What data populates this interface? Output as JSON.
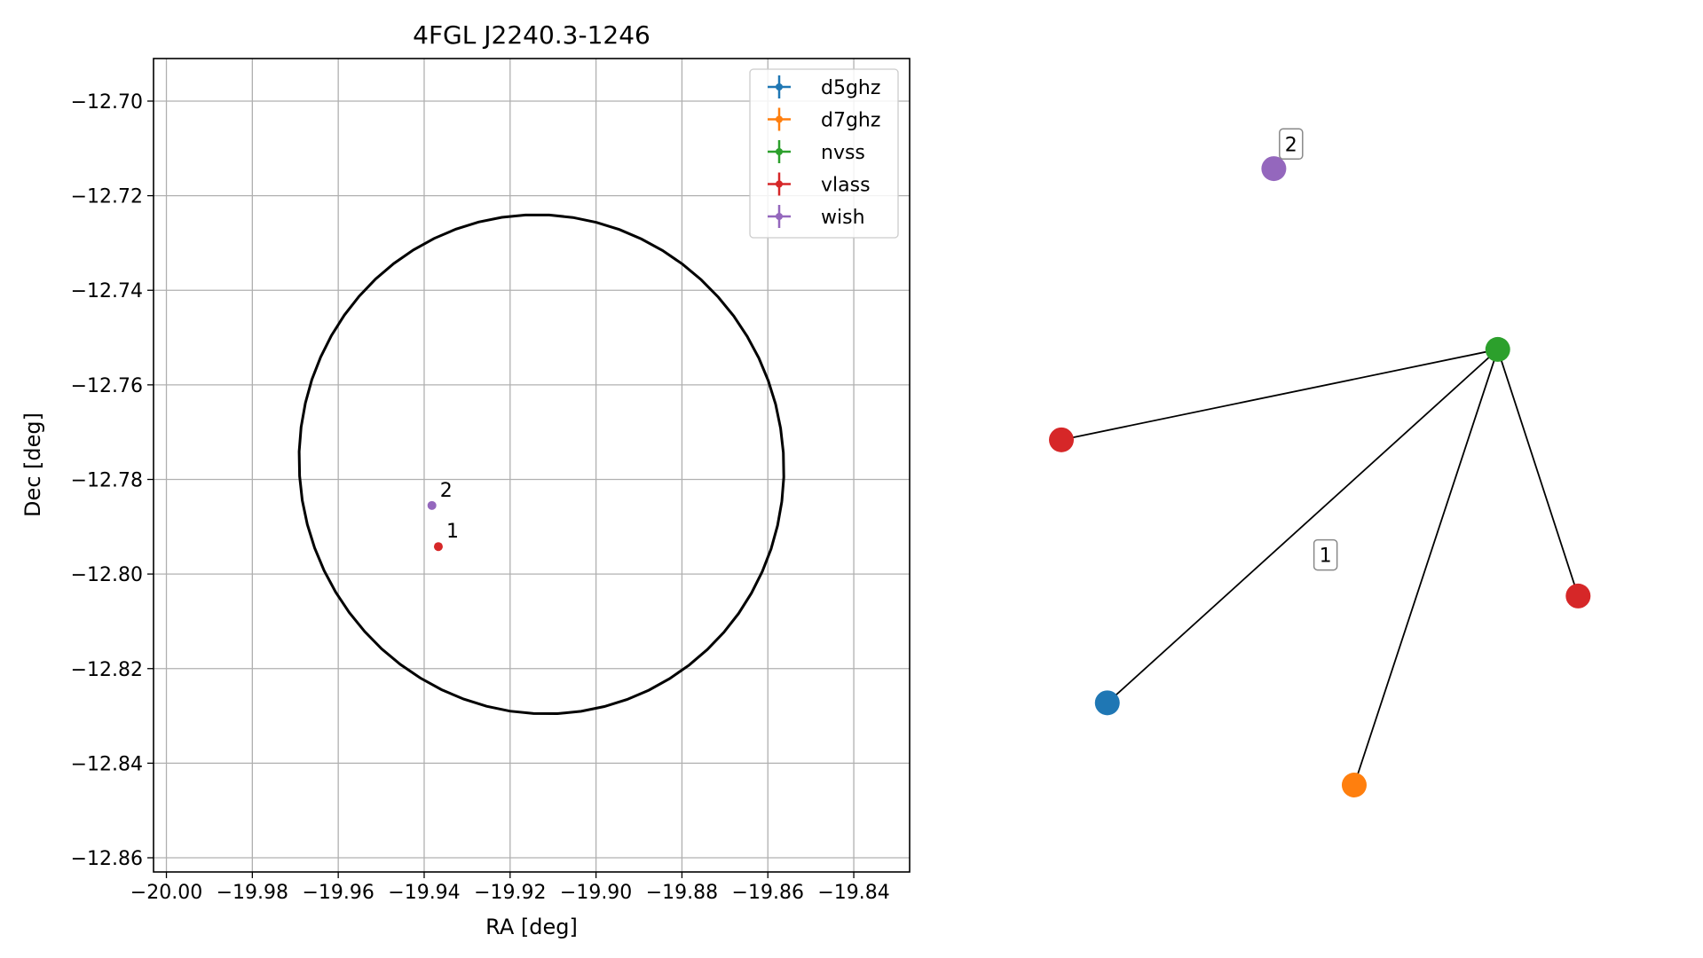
{
  "colors": {
    "d5ghz": "#1f77b4",
    "d7ghz": "#ff7f0e",
    "nvss": "#2ca02c",
    "vlass": "#d62728",
    "wish": "#9467bd",
    "grid": "#b0b0b0",
    "edge": "#000000"
  },
  "chart_data": [
    {
      "type": "scatter",
      "title": "4FGL J2240.3-1246",
      "xlabel": "RA [deg]",
      "ylabel": "Dec [deg]",
      "xlim": [
        -20.003,
        -19.827
      ],
      "ylim": [
        -12.863,
        -12.691
      ],
      "grid": true,
      "legend_placement": "top-right",
      "xticks": [
        -20.0,
        -19.98,
        -19.96,
        -19.94,
        -19.92,
        -19.9,
        -19.88,
        -19.86,
        -19.84
      ],
      "xtick_labels": [
        "−20.00",
        "−19.98",
        "−19.96",
        "−19.94",
        "−19.92",
        "−19.90",
        "−19.88",
        "−19.86",
        "−19.84"
      ],
      "yticks": [
        -12.7,
        -12.72,
        -12.74,
        -12.76,
        -12.78,
        -12.8,
        -12.82,
        -12.84,
        -12.86
      ],
      "ytick_labels": [
        "−12.70",
        "−12.72",
        "−12.74",
        "−12.76",
        "−12.78",
        "−12.80",
        "−12.82",
        "−12.84",
        "−12.86"
      ],
      "series": [
        {
          "name": "d5ghz",
          "points": []
        },
        {
          "name": "d7ghz",
          "points": []
        },
        {
          "name": "nvss",
          "points": []
        },
        {
          "name": "vlass",
          "points": [
            {
              "x": -19.9367,
              "y": -12.7942,
              "label": "1"
            }
          ]
        },
        {
          "name": "wish",
          "points": [
            {
              "x": -19.9382,
              "y": -12.7855,
              "label": "2"
            }
          ]
        }
      ],
      "ellipse": {
        "center_x": -19.9127,
        "center_y": -12.7768,
        "semi_axis_x": 0.0565,
        "semi_axis_y": 0.0527,
        "rotation_deg": -8
      }
    },
    {
      "type": "network",
      "nodes": [
        {
          "id": "wish-2",
          "series": "wish",
          "x": 0.37,
          "y": 0.93
        },
        {
          "id": "nvss-1",
          "series": "nvss",
          "x": 0.76,
          "y": 0.71
        },
        {
          "id": "vlass-a",
          "series": "vlass",
          "x": 0.0,
          "y": 0.6
        },
        {
          "id": "vlass-b",
          "series": "vlass",
          "x": 0.9,
          "y": 0.41
        },
        {
          "id": "d5ghz-1",
          "series": "d5ghz",
          "x": 0.08,
          "y": 0.28
        },
        {
          "id": "d7ghz-1",
          "series": "d7ghz",
          "x": 0.51,
          "y": 0.18
        }
      ],
      "edges": [
        [
          "nvss-1",
          "vlass-a"
        ],
        [
          "nvss-1",
          "d5ghz-1"
        ],
        [
          "nvss-1",
          "d7ghz-1"
        ],
        [
          "nvss-1",
          "vlass-b"
        ]
      ],
      "group_labels": [
        {
          "label": "1",
          "x": 0.46,
          "y": 0.46
        },
        {
          "label": "2",
          "x": 0.4,
          "y": 0.96
        }
      ]
    }
  ]
}
